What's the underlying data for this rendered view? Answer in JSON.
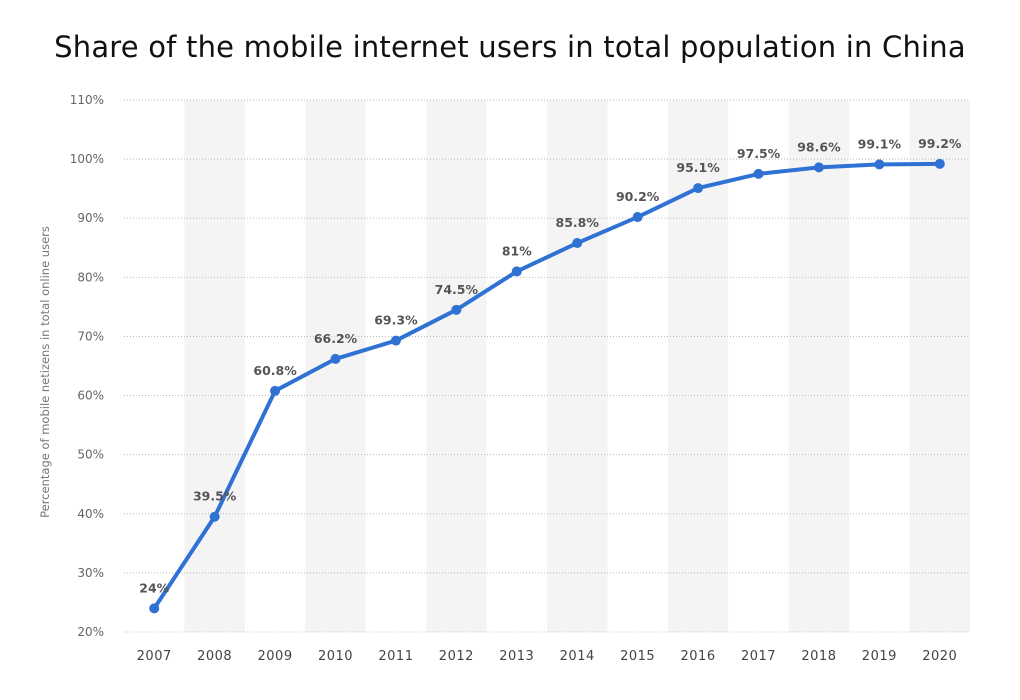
{
  "chart_data": {
    "type": "line",
    "title": "Share of the mobile internet users in total population in China",
    "xlabel": "",
    "ylabel": "Percentage of mobile netizens in total online users",
    "categories": [
      "2007",
      "2008",
      "2009",
      "2010",
      "2011",
      "2012",
      "2013",
      "2014",
      "2015",
      "2016",
      "2017",
      "2018",
      "2019",
      "2020"
    ],
    "series": [
      {
        "values": [
          24,
          39.5,
          60.8,
          66.2,
          69.3,
          74.5,
          81,
          85.8,
          90.2,
          95.1,
          97.5,
          98.6,
          99.1,
          99.2
        ],
        "labels": [
          "24%",
          "39.5%",
          "60.8%",
          "66.2%",
          "69.3%",
          "74.5%",
          "81%",
          "85.8%",
          "90.2%",
          "95.1%",
          "97.5%",
          "98.6%",
          "99.1%",
          "99.2%"
        ]
      }
    ],
    "ylim": [
      20,
      110
    ],
    "yticks": [
      20,
      30,
      40,
      50,
      60,
      70,
      80,
      90,
      100,
      110
    ],
    "ytick_labels": [
      "20%",
      "30%",
      "40%",
      "50%",
      "60%",
      "70%",
      "80%",
      "90%",
      "100%",
      "110%"
    ],
    "grid": true,
    "line_color": "#2f72d3",
    "band_color": "#f4f4f4",
    "grid_color": "#bbbbbb"
  }
}
